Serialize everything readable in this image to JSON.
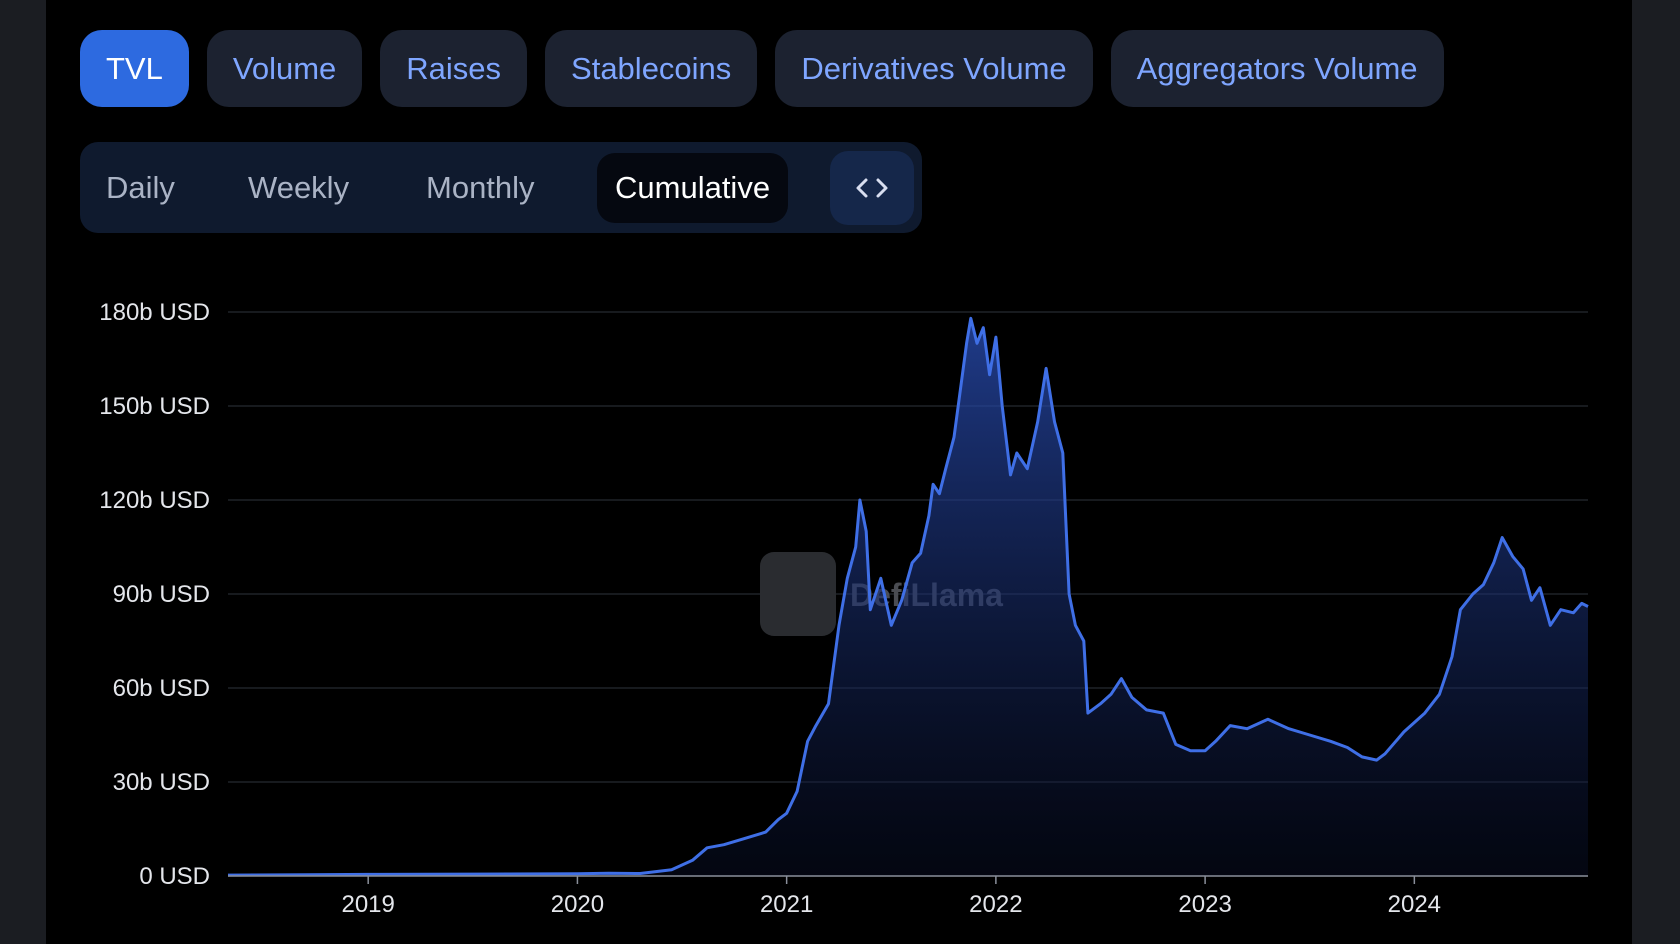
{
  "tabs": [
    {
      "label": "TVL",
      "active": true
    },
    {
      "label": "Volume",
      "active": false
    },
    {
      "label": "Raises",
      "active": false
    },
    {
      "label": "Stablecoins",
      "active": false
    },
    {
      "label": "Derivatives Volume",
      "active": false
    },
    {
      "label": "Aggregators Volume",
      "active": false
    }
  ],
  "periods": [
    {
      "label": "Daily",
      "active": false
    },
    {
      "label": "Weekly",
      "active": false
    },
    {
      "label": "Monthly",
      "active": false
    },
    {
      "label": "Cumulative",
      "active": true
    }
  ],
  "embed_icon": "code-icon",
  "watermark": "DefiLlama",
  "colors": {
    "accent": "#2d6ae0",
    "line": "#3f6fe6",
    "tab_text": "#7fa6ff",
    "background": "#000000"
  },
  "chart_data": {
    "type": "area",
    "title": "",
    "xlabel": "",
    "ylabel": "",
    "ylim": [
      0,
      180
    ],
    "xlim": [
      2018.33,
      2024.83
    ],
    "grid": true,
    "yticks": [
      {
        "value": 0,
        "label": "0 USD"
      },
      {
        "value": 30,
        "label": "30b USD"
      },
      {
        "value": 60,
        "label": "60b USD"
      },
      {
        "value": 90,
        "label": "90b USD"
      },
      {
        "value": 120,
        "label": "120b USD"
      },
      {
        "value": 150,
        "label": "150b USD"
      },
      {
        "value": 180,
        "label": "180b USD"
      }
    ],
    "xticks": [
      {
        "value": 2019,
        "label": "2019"
      },
      {
        "value": 2020,
        "label": "2020"
      },
      {
        "value": 2021,
        "label": "2021"
      },
      {
        "value": 2022,
        "label": "2022"
      },
      {
        "value": 2023,
        "label": "2023"
      },
      {
        "value": 2024,
        "label": "2024"
      }
    ],
    "series": [
      {
        "points": [
          [
            2018.33,
            0.3
          ],
          [
            2018.7,
            0.4
          ],
          [
            2019.0,
            0.5
          ],
          [
            2019.5,
            0.6
          ],
          [
            2020.0,
            0.7
          ],
          [
            2020.15,
            0.9
          ],
          [
            2020.3,
            0.8
          ],
          [
            2020.45,
            2
          ],
          [
            2020.55,
            5
          ],
          [
            2020.62,
            9
          ],
          [
            2020.7,
            10
          ],
          [
            2020.8,
            12
          ],
          [
            2020.9,
            14
          ],
          [
            2020.96,
            18
          ],
          [
            2021.0,
            20
          ],
          [
            2021.05,
            27
          ],
          [
            2021.1,
            43
          ],
          [
            2021.14,
            48
          ],
          [
            2021.2,
            55
          ],
          [
            2021.25,
            80
          ],
          [
            2021.29,
            95
          ],
          [
            2021.33,
            105
          ],
          [
            2021.35,
            120
          ],
          [
            2021.38,
            110
          ],
          [
            2021.4,
            85
          ],
          [
            2021.45,
            95
          ],
          [
            2021.5,
            80
          ],
          [
            2021.55,
            88
          ],
          [
            2021.6,
            100
          ],
          [
            2021.64,
            103
          ],
          [
            2021.68,
            115
          ],
          [
            2021.7,
            125
          ],
          [
            2021.73,
            122
          ],
          [
            2021.76,
            130
          ],
          [
            2021.8,
            140
          ],
          [
            2021.83,
            155
          ],
          [
            2021.86,
            170
          ],
          [
            2021.88,
            178
          ],
          [
            2021.91,
            170
          ],
          [
            2021.94,
            175
          ],
          [
            2021.97,
            160
          ],
          [
            2022.0,
            172
          ],
          [
            2022.03,
            150
          ],
          [
            2022.07,
            128
          ],
          [
            2022.1,
            135
          ],
          [
            2022.15,
            130
          ],
          [
            2022.2,
            145
          ],
          [
            2022.24,
            162
          ],
          [
            2022.28,
            145
          ],
          [
            2022.32,
            135
          ],
          [
            2022.35,
            90
          ],
          [
            2022.38,
            80
          ],
          [
            2022.42,
            75
          ],
          [
            2022.44,
            52
          ],
          [
            2022.5,
            55
          ],
          [
            2022.55,
            58
          ],
          [
            2022.6,
            63
          ],
          [
            2022.65,
            57
          ],
          [
            2022.72,
            53
          ],
          [
            2022.8,
            52
          ],
          [
            2022.86,
            42
          ],
          [
            2022.93,
            40
          ],
          [
            2023.0,
            40
          ],
          [
            2023.05,
            43
          ],
          [
            2023.12,
            48
          ],
          [
            2023.2,
            47
          ],
          [
            2023.3,
            50
          ],
          [
            2023.4,
            47
          ],
          [
            2023.5,
            45
          ],
          [
            2023.6,
            43
          ],
          [
            2023.68,
            41
          ],
          [
            2023.75,
            38
          ],
          [
            2023.82,
            37
          ],
          [
            2023.86,
            39
          ],
          [
            2023.95,
            46
          ],
          [
            2024.05,
            52
          ],
          [
            2024.12,
            58
          ],
          [
            2024.18,
            70
          ],
          [
            2024.22,
            85
          ],
          [
            2024.28,
            90
          ],
          [
            2024.33,
            93
          ],
          [
            2024.38,
            100
          ],
          [
            2024.42,
            108
          ],
          [
            2024.47,
            102
          ],
          [
            2024.52,
            98
          ],
          [
            2024.56,
            88
          ],
          [
            2024.6,
            92
          ],
          [
            2024.65,
            80
          ],
          [
            2024.7,
            85
          ],
          [
            2024.76,
            84
          ],
          [
            2024.8,
            87
          ],
          [
            2024.83,
            86
          ]
        ]
      }
    ]
  }
}
